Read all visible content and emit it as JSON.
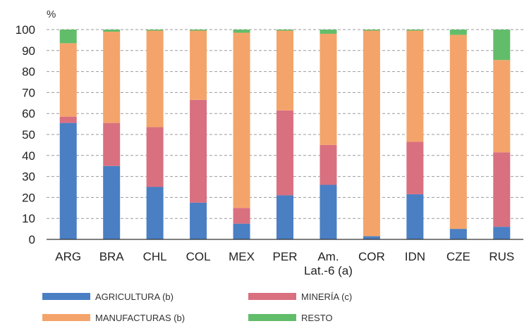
{
  "chart_data": {
    "type": "bar",
    "stacked": true,
    "y_unit_label": "%",
    "ylim": [
      0,
      100
    ],
    "yticks": [
      0,
      10,
      20,
      30,
      40,
      50,
      60,
      70,
      80,
      90,
      100
    ],
    "grid": "horizontal-dashed",
    "legend_position": "bottom",
    "categories": [
      "ARG",
      "BRA",
      "CHL",
      "COL",
      "MEX",
      "PER",
      "Am.\nLat.-6 (a)",
      "COR",
      "IDN",
      "CZE",
      "RUS"
    ],
    "series": [
      {
        "name": "AGRICULTURA (b)",
        "color": "#4a7fc4",
        "values": [
          55.5,
          35,
          25,
          17.5,
          7.5,
          21,
          26,
          1.5,
          21.5,
          5,
          6
        ]
      },
      {
        "name": "MINERÍA (c)",
        "color": "#d9707f",
        "values": [
          3,
          20.5,
          28.5,
          49,
          7.5,
          40.5,
          19,
          0,
          25,
          0,
          35.5
        ]
      },
      {
        "name": "MANUFACTURAS (b)",
        "color": "#f4a46a",
        "values": [
          35,
          43.5,
          46,
          33,
          83.5,
          38,
          53,
          98,
          53,
          92.5,
          44
        ]
      },
      {
        "name": "RESTO",
        "color": "#62bd6a",
        "values": [
          6.5,
          1,
          0.5,
          0.5,
          1.5,
          0.5,
          2,
          0.5,
          0.5,
          2.5,
          14.5
        ]
      }
    ]
  }
}
